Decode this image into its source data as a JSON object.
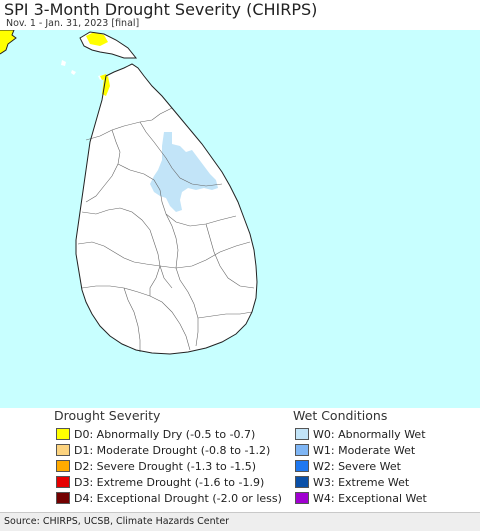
{
  "header": {
    "title": "SPI 3-Month Drought Severity (CHIRPS)",
    "subtitle": "Nov. 1 - Jan. 31, 2023 [final]"
  },
  "map": {
    "colors": {
      "ocean": "#c8ffff",
      "land": "#ffffff",
      "border": "#666666",
      "coast": "#222222",
      "dry": "#ffff00",
      "wet": "#c2e4f8"
    }
  },
  "legend": {
    "drought": {
      "heading": "Drought Severity",
      "items": [
        {
          "label": "D0: Abnormally Dry (-0.5 to -0.7)",
          "color": "#ffff00"
        },
        {
          "label": "D1: Moderate Drought (-0.8 to -1.2)",
          "color": "#fcd37f"
        },
        {
          "label": "D2: Severe Drought (-1.3 to -1.5)",
          "color": "#ffaa00"
        },
        {
          "label": "D3: Extreme Drought (-1.6 to -1.9)",
          "color": "#e60000"
        },
        {
          "label": "D4: Exceptional Drought (-2.0 or less)",
          "color": "#730000"
        }
      ]
    },
    "wet": {
      "heading": "Wet Conditions",
      "items": [
        {
          "label": "W0: Abnormally Wet",
          "color": "#c2e4f8"
        },
        {
          "label": "W1: Moderate Wet",
          "color": "#7fb6f5"
        },
        {
          "label": "W2: Severe Wet",
          "color": "#1f78f0"
        },
        {
          "label": "W3: Extreme Wet",
          "color": "#0a50a8"
        },
        {
          "label": "W4: Exceptional Wet",
          "color": "#a000d0"
        }
      ]
    }
  },
  "footer": {
    "source": "Source: CHIRPS, UCSB, Climate Hazards Center"
  }
}
